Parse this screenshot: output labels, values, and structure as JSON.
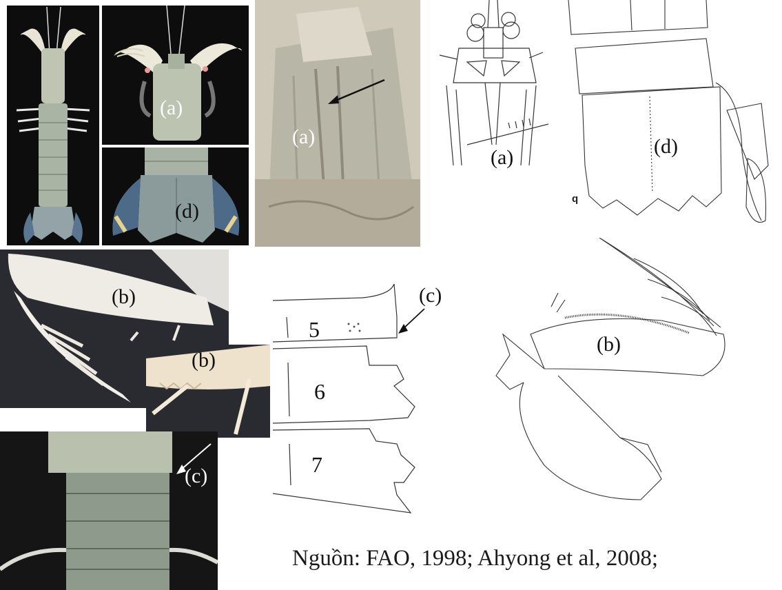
{
  "labels": {
    "a": "(a)",
    "b": "(b)",
    "c": "(c)",
    "d": "(d)"
  },
  "segments": [
    "5",
    "6",
    "7"
  ],
  "plate_letter": "q",
  "caption": "Nguồn: FAO, 1998; Ahyong et al, 2008;",
  "colors": {
    "photo_background": "#0d0d0d",
    "shrimp_body": "#c7cbb8",
    "drawing_ink": "#333333"
  }
}
